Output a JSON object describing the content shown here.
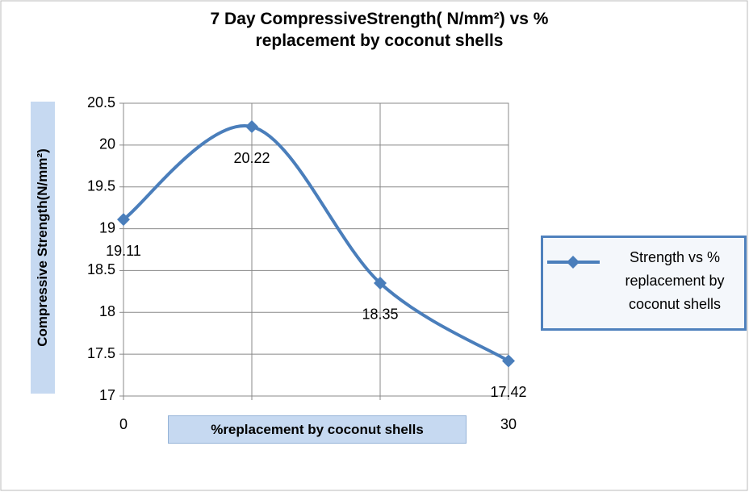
{
  "chart_data": {
    "type": "line",
    "title": "7 Day CompressiveStrength( N/mm²) vs  % replacement by coconut shells",
    "x_label": "%replacement by coconut shells",
    "y_label": "Compressive Strength(N/mm²)",
    "x": [
      0,
      10,
      20,
      30
    ],
    "series": [
      {
        "name": "Strength vs % replacement by coconut shells",
        "color": "#4a7ebb",
        "values": [
          19.11,
          20.22,
          18.35,
          17.42
        ]
      }
    ],
    "xlim": [
      0,
      30
    ],
    "xticks": [
      0,
      10,
      20,
      30
    ],
    "ylim": [
      17,
      20.5
    ],
    "yticks": [
      17,
      17.5,
      18,
      18.5,
      19,
      19.5,
      20,
      20.5
    ],
    "grid": true,
    "smooth": true,
    "data_labels": true,
    "legend": "right"
  }
}
